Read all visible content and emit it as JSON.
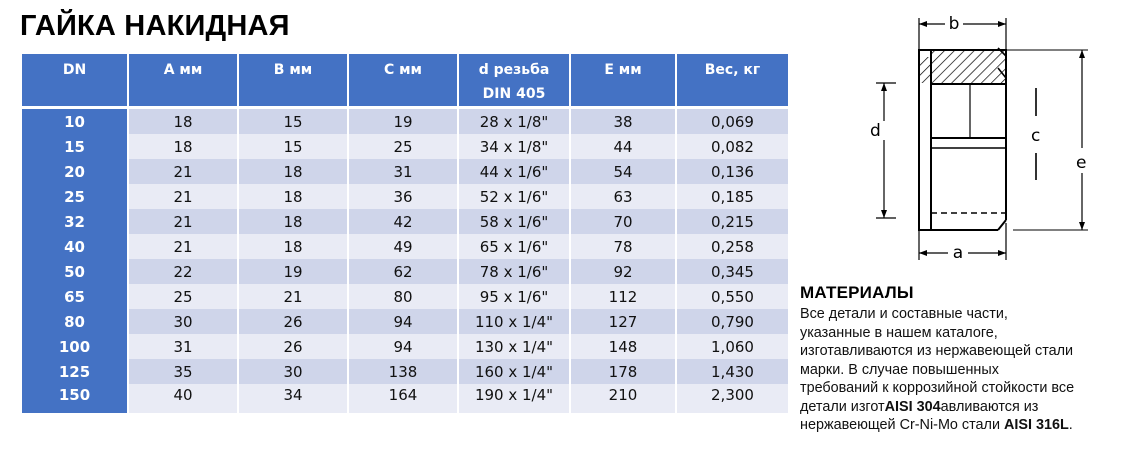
{
  "title": "ГАЙКА НАКИДНАЯ",
  "colors": {
    "header_bg": "#4472c4",
    "row_odd": "#cfd5ea",
    "row_even": "#e9ebf5"
  },
  "table": {
    "headers": [
      "DN",
      "A мм",
      "B мм",
      "C мм",
      "d резьба",
      "E мм",
      "Вес, кг"
    ],
    "header_extra": "DIN 405",
    "rows": [
      [
        "10",
        "18",
        "15",
        "19",
        "28 x 1/8\"",
        "38",
        "0,069"
      ],
      [
        "15",
        "18",
        "15",
        "25",
        "34 x 1/8\"",
        "44",
        "0,082"
      ],
      [
        "20",
        "21",
        "18",
        "31",
        "44 x 1/6\"",
        "54",
        "0,136"
      ],
      [
        "25",
        "21",
        "18",
        "36",
        "52 x 1/6\"",
        "63",
        "0,185"
      ],
      [
        "32",
        "21",
        "18",
        "42",
        "58 x 1/6\"",
        "70",
        "0,215"
      ],
      [
        "40",
        "21",
        "18",
        "49",
        "65 x 1/6\"",
        "78",
        "0,258"
      ],
      [
        "50",
        "22",
        "19",
        "62",
        "78 x 1/6\"",
        "92",
        "0,345"
      ],
      [
        "65",
        "25",
        "21",
        "80",
        "95 x 1/6\"",
        "112",
        "0,550"
      ],
      [
        "80",
        "30",
        "26",
        "94",
        "110 x 1/4\"",
        "127",
        "0,790"
      ],
      [
        "100",
        "31",
        "26",
        "94",
        "130 x 1/4\"",
        "148",
        "1,060"
      ],
      [
        "125",
        "35",
        "30",
        "138",
        "160 x 1/4\"",
        "178",
        "1,430"
      ],
      [
        "150",
        "40",
        "34",
        "164",
        "190 x 1/4\"",
        "210",
        "2,300"
      ]
    ]
  },
  "drawing": {
    "labels": {
      "b": "b",
      "d": "d",
      "c": "c",
      "e": "e",
      "a": "a"
    }
  },
  "materials": {
    "heading": "МАТЕРИАЛЫ",
    "line1": "Все детали и составные части,",
    "line2": "указанные в нашем каталоге,",
    "line3": "изготавливаются из нержавеющей стали",
    "line4": "марки. В случае повышенных",
    "line5": "требований к коррозийной стойкости все",
    "line6_pre": "детали изгот",
    "line6_bold": "AISI 304",
    "line6_post": "авливаются из",
    "line7_pre": "нержавеющей Cr-Ni-Mo стали ",
    "line7_bold": "AISI 316L",
    "line7_post": "."
  }
}
